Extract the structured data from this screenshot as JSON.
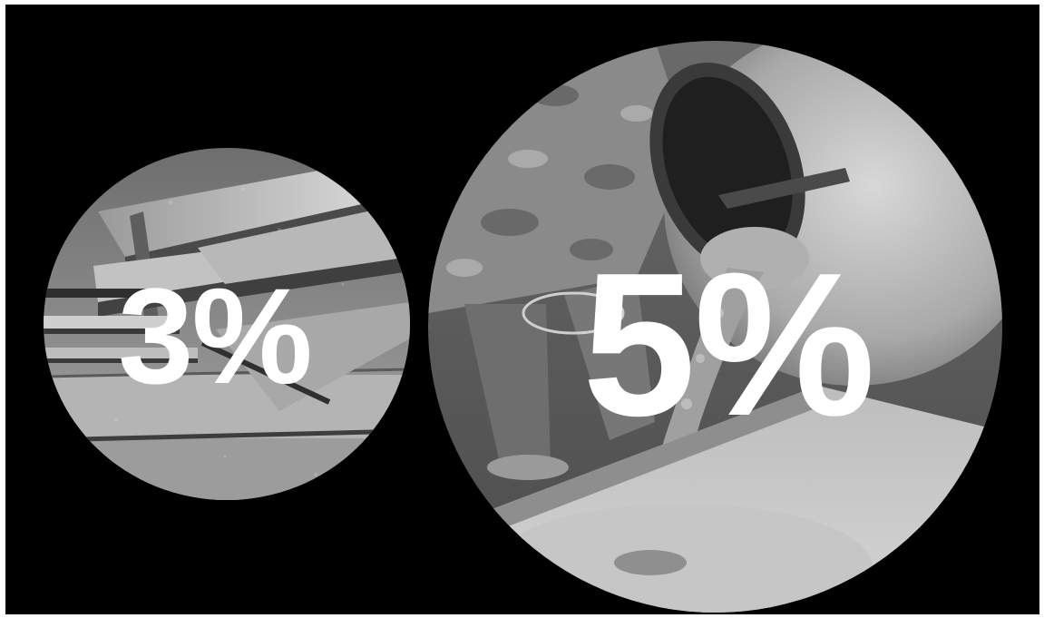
{
  "background_color": "#000000",
  "circles": [
    {
      "subject": "steel-beams-photo",
      "percent_label": "3%"
    },
    {
      "subject": "concrete-mixer-photo",
      "percent_label": "5%"
    }
  ],
  "palette": {
    "label": "#ffffff",
    "photo_light": "#cfcfcf",
    "photo_mid": "#8f8f8f",
    "photo_dark": "#3a3a3a"
  }
}
